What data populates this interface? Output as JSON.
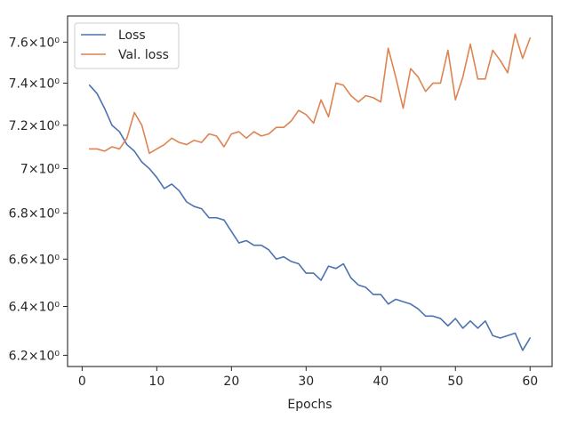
{
  "chart_data": {
    "type": "line",
    "title": "",
    "xlabel": "Epochs",
    "ylabel": "",
    "xlim": [
      -1.95,
      62.95
    ],
    "ylim": [
      6.155,
      7.73
    ],
    "y_scale": "log",
    "grid": false,
    "legend_position": "top-left",
    "x_ticks": [
      0,
      10,
      20,
      30,
      40,
      50,
      60
    ],
    "x_tick_labels": [
      "0",
      "10",
      "20",
      "30",
      "40",
      "50",
      "60"
    ],
    "y_ticks": [
      6.2,
      6.4,
      6.6,
      6.8,
      7.0,
      7.2,
      7.4,
      7.6
    ],
    "y_tick_labels": [
      "6.2×10⁰",
      "6.4×10⁰",
      "6.6×10⁰",
      "6.8×10⁰",
      "7×10⁰",
      "7.2×10⁰",
      "7.4×10⁰",
      "7.6×10⁰"
    ],
    "x": [
      1,
      2,
      3,
      4,
      5,
      6,
      7,
      8,
      9,
      10,
      11,
      12,
      13,
      14,
      15,
      16,
      17,
      18,
      19,
      20,
      21,
      22,
      23,
      24,
      25,
      26,
      27,
      28,
      29,
      30,
      31,
      32,
      33,
      34,
      35,
      36,
      37,
      38,
      39,
      40,
      41,
      42,
      43,
      44,
      45,
      46,
      47,
      48,
      49,
      50,
      51,
      52,
      53,
      54,
      55,
      56,
      57,
      58,
      59,
      60
    ],
    "series": [
      {
        "name": "Loss",
        "color": "#4c72b0",
        "values": [
          7.39,
          7.35,
          7.28,
          7.2,
          7.17,
          7.11,
          7.08,
          7.03,
          7.0,
          6.96,
          6.91,
          6.93,
          6.9,
          6.85,
          6.83,
          6.82,
          6.78,
          6.78,
          6.77,
          6.72,
          6.67,
          6.68,
          6.66,
          6.66,
          6.64,
          6.6,
          6.61,
          6.59,
          6.58,
          6.54,
          6.54,
          6.51,
          6.57,
          6.56,
          6.58,
          6.52,
          6.49,
          6.48,
          6.45,
          6.45,
          6.41,
          6.43,
          6.42,
          6.41,
          6.39,
          6.36,
          6.36,
          6.35,
          6.32,
          6.35,
          6.31,
          6.34,
          6.31,
          6.34,
          6.28,
          6.27,
          6.28,
          6.29,
          6.22,
          6.27
        ]
      },
      {
        "name": "Val. loss",
        "color": "#dd8452",
        "values": [
          7.09,
          7.09,
          7.08,
          7.1,
          7.09,
          7.14,
          7.26,
          7.2,
          7.07,
          7.09,
          7.11,
          7.14,
          7.12,
          7.11,
          7.13,
          7.12,
          7.16,
          7.15,
          7.1,
          7.16,
          7.17,
          7.14,
          7.17,
          7.15,
          7.16,
          7.19,
          7.19,
          7.22,
          7.27,
          7.25,
          7.21,
          7.32,
          7.24,
          7.4,
          7.39,
          7.34,
          7.31,
          7.34,
          7.33,
          7.31,
          7.57,
          7.43,
          7.28,
          7.47,
          7.43,
          7.36,
          7.4,
          7.4,
          7.56,
          7.32,
          7.43,
          7.59,
          7.42,
          7.42,
          7.56,
          7.51,
          7.45,
          7.64,
          7.52,
          7.62
        ]
      }
    ]
  }
}
